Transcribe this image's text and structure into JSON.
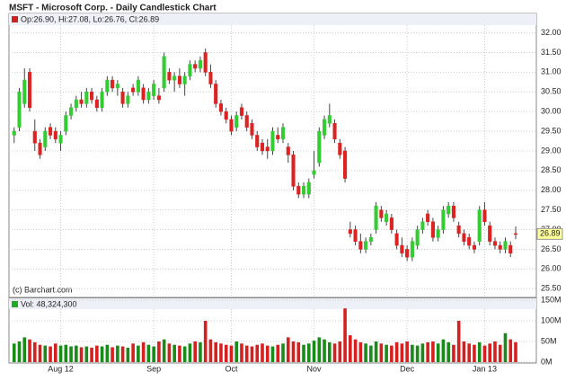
{
  "chart_data": [
    {
      "type": "candlestick",
      "title": "MSFT - Microsoft Corp. - Daily Candlestick Chart",
      "legend_text": "Op:26.90, Hi:27.08, Lo:26.76, Cl:26.89",
      "annotation": "(c) Barchart.com",
      "last_price": {
        "value": 26.89,
        "label": "26.89"
      },
      "up_color": "#33cc33",
      "down_color": "#dd2222",
      "grid": true,
      "x": [
        0,
        1,
        2,
        3,
        4,
        5,
        6,
        7,
        8,
        9,
        10,
        11,
        12,
        13,
        14,
        15,
        16,
        17,
        18,
        19,
        20,
        21,
        22,
        23,
        24,
        25,
        26,
        27,
        28,
        29,
        30,
        31,
        32,
        33,
        34,
        35,
        36,
        37,
        38,
        39,
        40,
        41,
        42,
        43,
        44,
        45,
        46,
        47,
        48,
        49,
        50,
        51,
        52,
        53,
        54,
        55,
        56,
        57,
        58,
        59,
        60,
        61,
        62,
        63,
        64,
        65,
        66,
        67,
        68,
        69,
        70,
        71,
        72,
        73,
        74,
        75,
        76,
        77,
        78,
        79,
        80,
        81,
        82,
        83,
        84,
        85,
        86,
        87,
        88,
        89,
        90,
        91,
        92,
        93,
        94,
        95,
        96,
        97
      ],
      "open": [
        29.4,
        29.6,
        30.2,
        31.0,
        29.5,
        29.2,
        29.1,
        29.6,
        29.5,
        29.2,
        29.5,
        29.9,
        30.1,
        30.3,
        30.2,
        30.5,
        30.3,
        30.1,
        30.5,
        30.8,
        30.6,
        30.5,
        30.2,
        30.6,
        30.5,
        30.6,
        30.3,
        30.4,
        30.4,
        30.6,
        31.0,
        30.8,
        30.9,
        30.7,
        30.9,
        31.2,
        31.1,
        31.5,
        31.0,
        30.7,
        30.2,
        30.0,
        29.8,
        29.6,
        30.1,
        29.9,
        29.7,
        29.4,
        29.2,
        29.1,
        29.0,
        29.4,
        29.3,
        29.1,
        28.9,
        28.1,
        27.9,
        27.9,
        28.4,
        28.7,
        29.4,
        29.7,
        29.7,
        29.2,
        29.0,
        27.0,
        27.0,
        26.7,
        26.5,
        26.7,
        27.0,
        27.5,
        27.2,
        27.3,
        26.9,
        26.6,
        26.5,
        26.3,
        26.6,
        27.0,
        27.4,
        27.2,
        26.8,
        27.0,
        27.4,
        27.6,
        27.1,
        26.9,
        26.8,
        26.6,
        26.7,
        27.5,
        27.1,
        26.7,
        26.6,
        26.5,
        26.6,
        26.9
      ],
      "high": [
        29.6,
        30.6,
        31.1,
        31.1,
        29.8,
        29.3,
        29.6,
        29.7,
        29.6,
        29.5,
        30.0,
        30.2,
        30.4,
        30.5,
        30.6,
        30.6,
        30.4,
        30.6,
        30.9,
        30.9,
        30.8,
        30.6,
        30.5,
        30.7,
        30.9,
        30.7,
        30.6,
        30.8,
        30.6,
        31.5,
        31.1,
        31.0,
        31.1,
        31.0,
        31.3,
        31.3,
        31.4,
        31.6,
        31.2,
        30.8,
        30.3,
        30.1,
        29.9,
        30.0,
        30.2,
        30.0,
        29.8,
        29.5,
        29.3,
        29.3,
        29.6,
        29.6,
        29.7,
        29.2,
        29.0,
        28.2,
        28.2,
        28.3,
        29.0,
        29.6,
        29.9,
        30.2,
        29.8,
        29.3,
        29.1,
        27.2,
        27.1,
        26.9,
        26.8,
        26.9,
        27.7,
        27.6,
        27.5,
        27.4,
        27.0,
        26.8,
        26.6,
        26.8,
        27.1,
        27.3,
        27.5,
        27.3,
        27.1,
        27.6,
        27.7,
        27.7,
        27.2,
        27.0,
        26.9,
        26.7,
        27.6,
        27.7,
        27.2,
        26.8,
        26.7,
        26.8,
        26.7,
        27.08
      ],
      "low": [
        29.2,
        29.5,
        30.1,
        30.0,
        29.0,
        28.8,
        29.0,
        29.3,
        29.2,
        29.0,
        29.4,
        29.8,
        30.0,
        30.1,
        30.1,
        30.2,
        30.0,
        30.0,
        30.4,
        30.5,
        30.4,
        30.1,
        30.1,
        30.4,
        30.4,
        30.2,
        30.2,
        30.3,
        30.2,
        30.5,
        30.7,
        30.5,
        30.6,
        30.4,
        30.8,
        31.0,
        31.0,
        30.9,
        30.6,
        30.1,
        29.9,
        29.7,
        29.4,
        29.5,
        29.8,
        29.5,
        29.3,
        29.0,
        28.9,
        28.8,
        28.9,
        29.2,
        29.2,
        28.7,
        28.0,
        27.8,
        27.8,
        27.8,
        28.3,
        28.6,
        29.3,
        29.6,
        29.2,
        28.8,
        28.2,
        26.8,
        26.6,
        26.4,
        26.4,
        26.6,
        26.9,
        27.2,
        27.1,
        26.9,
        26.5,
        26.3,
        26.2,
        26.2,
        26.5,
        26.9,
        27.1,
        26.7,
        26.7,
        26.9,
        27.3,
        27.2,
        26.8,
        26.6,
        26.5,
        26.4,
        26.6,
        27.1,
        26.6,
        26.5,
        26.4,
        26.4,
        26.3,
        26.76
      ],
      "close": [
        29.5,
        30.5,
        30.8,
        30.1,
        29.2,
        28.9,
        29.5,
        29.4,
        29.3,
        29.4,
        29.9,
        30.1,
        30.3,
        30.2,
        30.5,
        30.3,
        30.1,
        30.5,
        30.8,
        30.6,
        30.7,
        30.2,
        30.4,
        30.5,
        30.8,
        30.3,
        30.5,
        30.7,
        30.3,
        31.4,
        30.8,
        30.9,
        30.7,
        30.9,
        31.2,
        31.1,
        31.3,
        31.0,
        30.7,
        30.2,
        30.0,
        29.8,
        29.5,
        29.9,
        29.9,
        29.6,
        29.4,
        29.1,
        29.0,
        29.0,
        29.5,
        29.3,
        29.6,
        28.9,
        28.1,
        27.9,
        28.1,
        28.2,
        28.5,
        29.5,
        29.8,
        29.9,
        29.3,
        28.9,
        28.3,
        26.9,
        26.7,
        26.5,
        26.7,
        26.8,
        27.6,
        27.3,
        27.4,
        27.0,
        26.6,
        26.4,
        26.3,
        26.7,
        27.0,
        27.2,
        27.2,
        26.8,
        27.0,
        27.5,
        27.6,
        27.3,
        26.9,
        26.7,
        26.6,
        26.5,
        27.5,
        27.2,
        26.7,
        26.6,
        26.5,
        26.7,
        26.4,
        26.89
      ],
      "xlim": [
        -1,
        101
      ],
      "xticks": [
        {
          "value": 9,
          "label": "Aug 12"
        },
        {
          "value": 27,
          "label": "Sep"
        },
        {
          "value": 42,
          "label": "Oct"
        },
        {
          "value": 58,
          "label": "Nov"
        },
        {
          "value": 76,
          "label": "Dec"
        },
        {
          "value": 91,
          "label": "Jan 13"
        }
      ],
      "ylim": [
        25.3,
        32.15
      ],
      "yticks": [
        {
          "value": 25.5,
          "label": "25.50"
        },
        {
          "value": 26,
          "label": "26.00"
        },
        {
          "value": 26.5,
          "label": "26.50"
        },
        {
          "value": 27,
          "label": "27.00"
        },
        {
          "value": 27.5,
          "label": "27.50"
        },
        {
          "value": 28,
          "label": "28.00"
        },
        {
          "value": 28.5,
          "label": "28.50"
        },
        {
          "value": 29,
          "label": "29.00"
        },
        {
          "value": 29.5,
          "label": "29.50"
        },
        {
          "value": 30,
          "label": "30.00"
        },
        {
          "value": 30.5,
          "label": "30.50"
        },
        {
          "value": 31,
          "label": "31.00"
        },
        {
          "value": 31.5,
          "label": "31.50"
        },
        {
          "value": 32,
          "label": "32.00"
        }
      ]
    },
    {
      "type": "bar",
      "legend_text": "Vol: 48,324,300",
      "values": [
        45,
        50,
        60,
        55,
        48,
        42,
        40,
        38,
        45,
        40,
        42,
        38,
        40,
        36,
        38,
        35,
        40,
        38,
        42,
        36,
        40,
        38,
        35,
        45,
        40,
        48,
        42,
        38,
        50,
        55,
        45,
        42,
        40,
        38,
        45,
        50,
        48,
        100,
        55,
        48,
        45,
        42,
        40,
        50,
        45,
        40,
        38,
        42,
        45,
        40,
        38,
        42,
        45,
        60,
        50,
        48,
        42,
        45,
        52,
        60,
        55,
        48,
        45,
        50,
        130,
        65,
        55,
        48,
        45,
        40,
        50,
        45,
        42,
        40,
        48,
        45,
        50,
        42,
        40,
        45,
        48,
        50,
        45,
        55,
        48,
        42,
        100,
        50,
        45,
        42,
        48,
        40,
        45,
        50,
        42,
        70,
        55,
        48.3243
      ],
      "ylim": [
        0,
        150
      ],
      "yticks": [
        {
          "value": 0,
          "label": "0M"
        },
        {
          "value": 50,
          "label": "50M"
        },
        {
          "value": 100,
          "label": "100M"
        },
        {
          "value": 150,
          "label": "150M"
        }
      ]
    }
  ]
}
